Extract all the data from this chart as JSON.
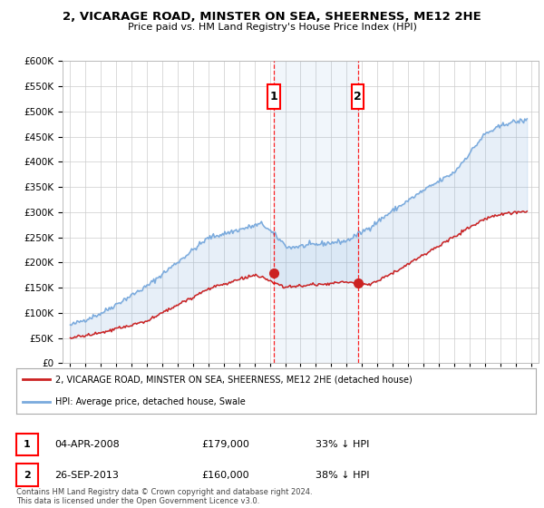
{
  "title": "2, VICARAGE ROAD, MINSTER ON SEA, SHEERNESS, ME12 2HE",
  "subtitle": "Price paid vs. HM Land Registry's House Price Index (HPI)",
  "hpi_color": "#7aaadd",
  "price_color": "#cc2222",
  "background_color": "#ffffff",
  "grid_color": "#cccccc",
  "sale1": {
    "date_num": 2008.26,
    "price": 179000,
    "label": "1",
    "date_str": "04-APR-2008",
    "pct": "33% ↓ HPI"
  },
  "sale2": {
    "date_num": 2013.73,
    "price": 160000,
    "label": "2",
    "date_str": "26-SEP-2013",
    "pct": "38% ↓ HPI"
  },
  "legend_line1": "2, VICARAGE ROAD, MINSTER ON SEA, SHEERNESS, ME12 2HE (detached house)",
  "legend_line2": "HPI: Average price, detached house, Swale",
  "footer": "Contains HM Land Registry data © Crown copyright and database right 2024.\nThis data is licensed under the Open Government Licence v3.0.",
  "ylim": [
    0,
    600000
  ],
  "yticks": [
    0,
    50000,
    100000,
    150000,
    200000,
    250000,
    300000,
    350000,
    400000,
    450000,
    500000,
    550000,
    600000
  ],
  "xlim_start": 1994.5,
  "xlim_end": 2025.5
}
